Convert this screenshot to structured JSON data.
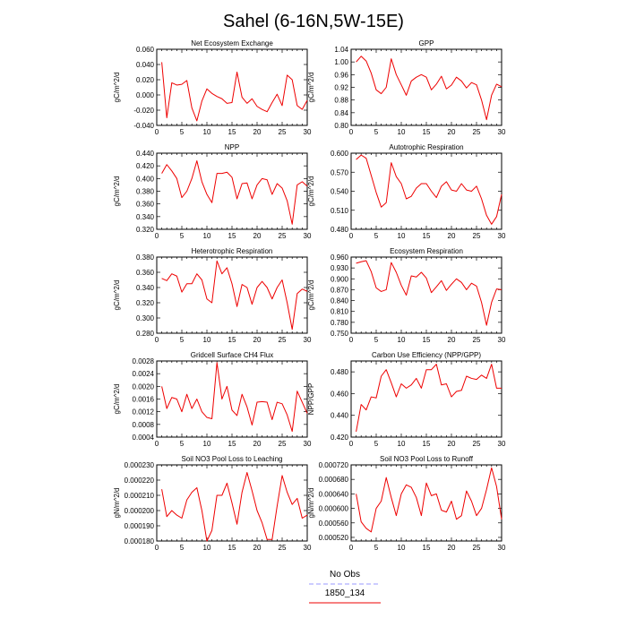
{
  "title": "Sahel (6-16N,5W-15E)",
  "legend": [
    {
      "label": "No Obs",
      "color": "#9999ff",
      "dash": true
    },
    {
      "label": "1850_134",
      "color": "#ee0000",
      "dash": false
    }
  ],
  "chart_data": [
    {
      "type": "line",
      "title": "Net Ecosystem Exchange",
      "ylabel": "gC/m^2/d",
      "xlim": [
        0,
        30
      ],
      "xticks": [
        "0",
        "5",
        "10",
        "15",
        "20",
        "25",
        "30"
      ],
      "ylim": [
        -0.04,
        0.06
      ],
      "yticks": [
        "-0.040",
        "-0.020",
        "0.000",
        "0.020",
        "0.040",
        "0.060"
      ],
      "x": [
        1,
        2,
        3,
        4,
        5,
        6,
        7,
        8,
        9,
        10,
        11,
        12,
        13,
        14,
        15,
        16,
        17,
        18,
        19,
        20,
        21,
        22,
        23,
        24,
        25,
        26,
        27,
        28,
        29,
        30
      ],
      "series": [
        {
          "name": "1850_134",
          "color": "#ee0000",
          "values": [
            0.043,
            -0.03,
            0.016,
            0.013,
            0.014,
            0.019,
            -0.017,
            -0.034,
            -0.008,
            0.008,
            0.002,
            -0.002,
            -0.005,
            -0.011,
            -0.01,
            0.03,
            -0.003,
            -0.011,
            -0.005,
            -0.015,
            -0.019,
            -0.022,
            -0.01,
            0.001,
            -0.014,
            0.026,
            0.02,
            -0.014,
            -0.019,
            -0.007
          ]
        }
      ]
    },
    {
      "type": "line",
      "title": "GPP",
      "ylabel": "gC/m^2/d",
      "xlim": [
        0,
        30
      ],
      "xticks": [
        "0",
        "5",
        "10",
        "15",
        "20",
        "25",
        "30"
      ],
      "ylim": [
        0.8,
        1.04
      ],
      "yticks": [
        "0.80",
        "0.84",
        "0.88",
        "0.92",
        "0.96",
        "1.00",
        "1.04"
      ],
      "x": [
        1,
        2,
        3,
        4,
        5,
        6,
        7,
        8,
        9,
        10,
        11,
        12,
        13,
        14,
        15,
        16,
        17,
        18,
        19,
        20,
        21,
        22,
        23,
        24,
        25,
        26,
        27,
        28,
        29,
        30
      ],
      "series": [
        {
          "name": "1850_134",
          "color": "#ee0000",
          "values": [
            1.0,
            1.018,
            1.003,
            0.965,
            0.912,
            0.9,
            0.92,
            1.01,
            0.96,
            0.928,
            0.895,
            0.94,
            0.952,
            0.96,
            0.952,
            0.912,
            0.93,
            0.955,
            0.915,
            0.927,
            0.952,
            0.94,
            0.918,
            0.935,
            0.928,
            0.88,
            0.818,
            0.895,
            0.93,
            0.922
          ]
        }
      ]
    },
    {
      "type": "line",
      "title": "NPP",
      "ylabel": "gC/m^2/d",
      "xlim": [
        0,
        30
      ],
      "xticks": [
        "0",
        "5",
        "10",
        "15",
        "20",
        "25",
        "30"
      ],
      "ylim": [
        0.32,
        0.44
      ],
      "yticks": [
        "0.320",
        "0.340",
        "0.360",
        "0.380",
        "0.400",
        "0.420",
        "0.440"
      ],
      "x": [
        1,
        2,
        3,
        4,
        5,
        6,
        7,
        8,
        9,
        10,
        11,
        12,
        13,
        14,
        15,
        16,
        17,
        18,
        19,
        20,
        21,
        22,
        23,
        24,
        25,
        26,
        27,
        28,
        29,
        30
      ],
      "series": [
        {
          "name": "1850_134",
          "color": "#ee0000",
          "values": [
            0.408,
            0.422,
            0.412,
            0.4,
            0.37,
            0.38,
            0.4,
            0.428,
            0.395,
            0.375,
            0.362,
            0.408,
            0.408,
            0.41,
            0.402,
            0.368,
            0.392,
            0.393,
            0.368,
            0.39,
            0.4,
            0.398,
            0.375,
            0.392,
            0.385,
            0.365,
            0.328,
            0.39,
            0.395,
            0.388
          ]
        }
      ]
    },
    {
      "type": "line",
      "title": "Autotrophic Respiration",
      "ylabel": "gC/m^2/d",
      "xlim": [
        0,
        30
      ],
      "xticks": [
        "0",
        "5",
        "10",
        "15",
        "20",
        "25",
        "30"
      ],
      "ylim": [
        0.48,
        0.6
      ],
      "yticks": [
        "0.480",
        "0.510",
        "0.540",
        "0.570",
        "0.600"
      ],
      "x": [
        1,
        2,
        3,
        4,
        5,
        6,
        7,
        8,
        9,
        10,
        11,
        12,
        13,
        14,
        15,
        16,
        17,
        18,
        19,
        20,
        21,
        22,
        23,
        24,
        25,
        26,
        27,
        28,
        29,
        30
      ],
      "series": [
        {
          "name": "1850_134",
          "color": "#ee0000",
          "values": [
            0.59,
            0.597,
            0.592,
            0.565,
            0.538,
            0.515,
            0.522,
            0.585,
            0.563,
            0.552,
            0.528,
            0.532,
            0.545,
            0.552,
            0.552,
            0.54,
            0.53,
            0.548,
            0.555,
            0.542,
            0.54,
            0.552,
            0.542,
            0.54,
            0.548,
            0.528,
            0.502,
            0.488,
            0.5,
            0.535
          ]
        }
      ]
    },
    {
      "type": "line",
      "title": "Heterotrophic Respiration",
      "ylabel": "gC/m^2/d",
      "xlim": [
        0,
        30
      ],
      "xticks": [
        "0",
        "5",
        "10",
        "15",
        "20",
        "25",
        "30"
      ],
      "ylim": [
        0.28,
        0.38
      ],
      "yticks": [
        "0.280",
        "0.300",
        "0.320",
        "0.340",
        "0.360",
        "0.380"
      ],
      "x": [
        1,
        2,
        3,
        4,
        5,
        6,
        7,
        8,
        9,
        10,
        11,
        12,
        13,
        14,
        15,
        16,
        17,
        18,
        19,
        20,
        21,
        22,
        23,
        24,
        25,
        26,
        27,
        28,
        29,
        30
      ],
      "series": [
        {
          "name": "1850_134",
          "color": "#ee0000",
          "values": [
            0.352,
            0.349,
            0.358,
            0.355,
            0.334,
            0.345,
            0.345,
            0.358,
            0.35,
            0.325,
            0.32,
            0.375,
            0.358,
            0.366,
            0.345,
            0.315,
            0.344,
            0.34,
            0.318,
            0.34,
            0.348,
            0.34,
            0.325,
            0.34,
            0.35,
            0.32,
            0.285,
            0.332,
            0.338,
            0.335
          ]
        }
      ]
    },
    {
      "type": "line",
      "title": "Ecosystem Respiration",
      "ylabel": "gC/m^2/d",
      "xlim": [
        0,
        30
      ],
      "xticks": [
        "0",
        "5",
        "10",
        "15",
        "20",
        "25",
        "30"
      ],
      "ylim": [
        0.75,
        0.96
      ],
      "yticks": [
        "0.750",
        "0.780",
        "0.810",
        "0.840",
        "0.870",
        "0.900",
        "0.930",
        "0.960"
      ],
      "x": [
        1,
        2,
        3,
        4,
        5,
        6,
        7,
        8,
        9,
        10,
        11,
        12,
        13,
        14,
        15,
        16,
        17,
        18,
        19,
        20,
        21,
        22,
        23,
        24,
        25,
        26,
        27,
        28,
        29,
        30
      ],
      "series": [
        {
          "name": "1850_134",
          "color": "#ee0000",
          "values": [
            0.943,
            0.947,
            0.95,
            0.92,
            0.875,
            0.865,
            0.87,
            0.945,
            0.918,
            0.882,
            0.855,
            0.908,
            0.905,
            0.918,
            0.902,
            0.862,
            0.878,
            0.895,
            0.868,
            0.885,
            0.9,
            0.89,
            0.87,
            0.888,
            0.88,
            0.835,
            0.772,
            0.835,
            0.872,
            0.87
          ]
        }
      ]
    },
    {
      "type": "line",
      "title": "Gridcell Surface CH4 Flux",
      "ylabel": "gC/m^2/d",
      "xlim": [
        0,
        30
      ],
      "xticks": [
        "0",
        "5",
        "10",
        "15",
        "20",
        "25",
        "30"
      ],
      "ylim": [
        0.0004,
        0.0028
      ],
      "yticks": [
        "0.0004",
        "0.0008",
        "0.0012",
        "0.0016",
        "0.0020",
        "0.0024",
        "0.0028"
      ],
      "x": [
        1,
        2,
        3,
        4,
        5,
        6,
        7,
        8,
        9,
        10,
        11,
        12,
        13,
        14,
        15,
        16,
        17,
        18,
        19,
        20,
        21,
        22,
        23,
        24,
        25,
        26,
        27,
        28,
        29,
        30
      ],
      "series": [
        {
          "name": "1850_134",
          "color": "#ee0000",
          "values": [
            0.002,
            0.0013,
            0.00165,
            0.0016,
            0.0012,
            0.00175,
            0.0013,
            0.0016,
            0.0012,
            0.00102,
            0.00098,
            0.00275,
            0.0016,
            0.002,
            0.00125,
            0.00108,
            0.00175,
            0.00135,
            0.00078,
            0.0015,
            0.00152,
            0.0015,
            0.00095,
            0.0015,
            0.00145,
            0.0011,
            0.00058,
            0.00185,
            0.0015,
            0.00115
          ]
        }
      ]
    },
    {
      "type": "line",
      "title": "Carbon Use Efficiency (NPP/GPP)",
      "ylabel": "NPP/GPP",
      "xlim": [
        0,
        30
      ],
      "xticks": [
        "0",
        "5",
        "10",
        "15",
        "20",
        "25",
        "30"
      ],
      "ylim": [
        0.42,
        0.49
      ],
      "yticks": [
        "0.420",
        "0.440",
        "0.460",
        "0.480"
      ],
      "x": [
        1,
        2,
        3,
        4,
        5,
        6,
        7,
        8,
        9,
        10,
        11,
        12,
        13,
        14,
        15,
        16,
        17,
        18,
        19,
        20,
        21,
        22,
        23,
        24,
        25,
        26,
        27,
        28,
        29,
        30
      ],
      "series": [
        {
          "name": "1850_134",
          "color": "#ee0000",
          "values": [
            0.425,
            0.45,
            0.445,
            0.457,
            0.456,
            0.476,
            0.482,
            0.47,
            0.457,
            0.469,
            0.465,
            0.468,
            0.474,
            0.465,
            0.482,
            0.482,
            0.487,
            0.468,
            0.469,
            0.457,
            0.462,
            0.463,
            0.476,
            0.474,
            0.473,
            0.477,
            0.474,
            0.487,
            0.465,
            0.465
          ]
        }
      ]
    },
    {
      "type": "line",
      "title": "Soil NO3 Pool Loss to Leaching",
      "ylabel": "gN/m^2/d",
      "xlim": [
        0,
        30
      ],
      "xticks": [
        "0",
        "5",
        "10",
        "15",
        "20",
        "25",
        "30"
      ],
      "ylim": [
        0.00018,
        0.00023
      ],
      "yticks": [
        "0.000180",
        "0.000190",
        "0.000200",
        "0.000210",
        "0.000220",
        "0.000230"
      ],
      "x": [
        1,
        2,
        3,
        4,
        5,
        6,
        7,
        8,
        9,
        10,
        11,
        12,
        13,
        14,
        15,
        16,
        17,
        18,
        19,
        20,
        21,
        22,
        23,
        24,
        25,
        26,
        27,
        28,
        29,
        30
      ],
      "series": [
        {
          "name": "1850_134",
          "color": "#ee0000",
          "values": [
            0.000214,
            0.000196,
            0.0002,
            0.000197,
            0.000195,
            0.000207,
            0.000212,
            0.000215,
            0.0002,
            0.00018,
            0.000187,
            0.00021,
            0.00021,
            0.000218,
            0.000205,
            0.000191,
            0.000212,
            0.000225,
            0.000213,
            0.0002,
            0.000192,
            0.000181,
            0.000181,
            0.000203,
            0.000223,
            0.000212,
            0.000204,
            0.000208,
            0.000195,
            0.000197
          ]
        }
      ]
    },
    {
      "type": "line",
      "title": "Soil NO3 Pool Loss to Runoff",
      "ylabel": "gN/m^2/d",
      "xlim": [
        0,
        30
      ],
      "xticks": [
        "0",
        "5",
        "10",
        "15",
        "20",
        "25",
        "30"
      ],
      "ylim": [
        0.00051,
        0.00072
      ],
      "yticks": [
        "0.000520",
        "0.000560",
        "0.000600",
        "0.000640",
        "0.000680",
        "0.000720"
      ],
      "x": [
        1,
        2,
        3,
        4,
        5,
        6,
        7,
        8,
        9,
        10,
        11,
        12,
        13,
        14,
        15,
        16,
        17,
        18,
        19,
        20,
        21,
        22,
        23,
        24,
        25,
        26,
        27,
        28,
        29,
        30
      ],
      "series": [
        {
          "name": "1850_134",
          "color": "#ee0000",
          "values": [
            0.00064,
            0.000563,
            0.000545,
            0.000535,
            0.0006,
            0.00062,
            0.000685,
            0.00063,
            0.00058,
            0.00064,
            0.000665,
            0.000658,
            0.00063,
            0.00058,
            0.00067,
            0.000635,
            0.00064,
            0.000595,
            0.00059,
            0.00062,
            0.00057,
            0.00058,
            0.000648,
            0.00062,
            0.00058,
            0.0006,
            0.000652,
            0.000712,
            0.00066,
            0.00057
          ]
        }
      ]
    }
  ]
}
